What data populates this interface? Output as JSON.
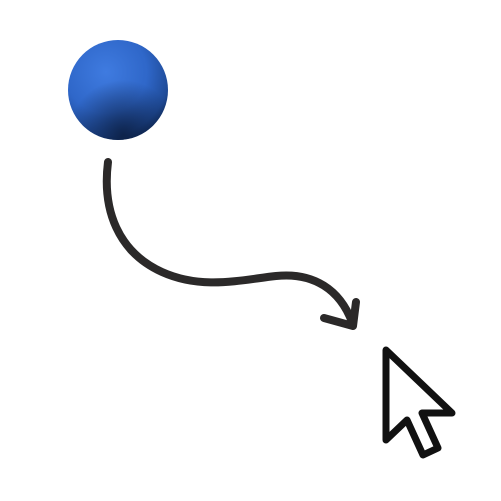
{
  "scene": {
    "background_color": "#ffffff",
    "ball": {
      "icon": "blue-sphere",
      "color": "#2f67c9",
      "shadow_color": "#0f2a59"
    },
    "arrow": {
      "icon": "curved-arrow",
      "color": "#2b2929"
    },
    "cursor": {
      "icon": "mouse-pointer-icon",
      "fill_color": "#ffffff",
      "stroke_color": "#111111"
    }
  }
}
